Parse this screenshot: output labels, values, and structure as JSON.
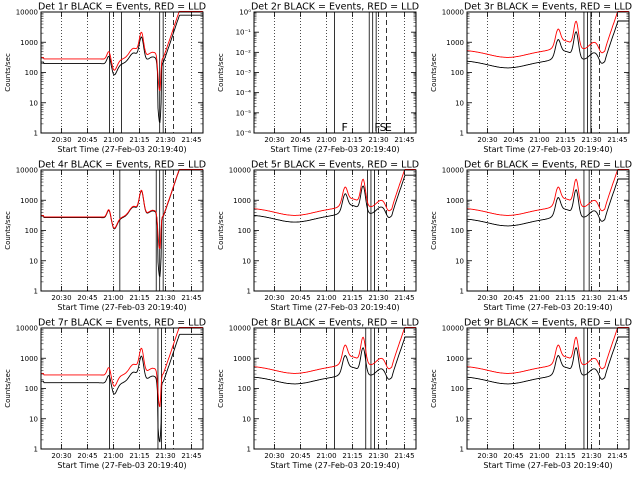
{
  "chart_data": [
    {
      "type": "line",
      "title": "Det 1r BLACK = Events, RED = LLD",
      "xlabel": "Start Time (27-Feb-03 20:19:40)",
      "ylabel": "Counts/sec",
      "yscale": "log",
      "ylim": [
        1,
        10000
      ],
      "xlim": [
        -1.5,
        92
      ],
      "x_tick_labels": [
        "20:30",
        "20:45",
        "21:00",
        "21:15",
        "21:30",
        "21:45"
      ],
      "y_tick_labels": [
        "1",
        "10",
        "100",
        "1000",
        "10000"
      ],
      "series": [
        {
          "name": "BLACK = Events",
          "color": "#000000",
          "shape": "A",
          "level": 0.7
        },
        {
          "name": "RED = LLD",
          "color": "#ff0000",
          "shape": "A",
          "level": 1.0
        }
      ],
      "vlines": [
        {
          "x": 38,
          "style": "solid"
        },
        {
          "x": 45,
          "style": "solid"
        },
        {
          "x": 67,
          "style": "solid"
        },
        {
          "x": 69,
          "style": "solid"
        },
        {
          "x": 75,
          "style": "dashed"
        }
      ]
    },
    {
      "type": "line",
      "title": "Det 2r BLACK = Events, RED = LLD",
      "xlabel": "Start Time (27-Feb-03 20:19:40)",
      "ylabel": "Counts/sec",
      "yscale": "log",
      "ylim": [
        1e-06,
        1
      ],
      "xlim": [
        -1.5,
        92
      ],
      "x_tick_labels": [
        "20:30",
        "20:45",
        "21:00",
        "21:15",
        "21:30",
        "21:45"
      ],
      "y_tick_labels": [
        "10⁻⁶",
        "10⁻⁵",
        "10⁻⁴",
        "10⁻³",
        "10⁻²",
        "10⁻¹",
        "10⁰"
      ],
      "series": [],
      "vlines": [
        {
          "x": 45,
          "style": "solid"
        },
        {
          "x": 65,
          "style": "solid"
        },
        {
          "x": 67,
          "style": "solid"
        },
        {
          "x": 69,
          "style": "solid"
        },
        {
          "x": 75,
          "style": "dashed"
        }
      ],
      "annotations": [
        {
          "x": 49,
          "text": "F"
        },
        {
          "x": 68,
          "text": "F"
        },
        {
          "x": 71,
          "text": "S"
        },
        {
          "x": 74,
          "text": "E"
        }
      ]
    },
    {
      "type": "line",
      "title": "Det 3r BLACK = Events, RED = LLD",
      "xlabel": "Start Time (27-Feb-03 20:19:40)",
      "ylabel": "Counts/sec",
      "yscale": "log",
      "ylim": [
        1,
        10000
      ],
      "xlim": [
        -1.5,
        92
      ],
      "x_tick_labels": [
        "20:30",
        "20:45",
        "21:00",
        "21:15",
        "21:30",
        "21:45"
      ],
      "y_tick_labels": [
        "1",
        "10",
        "100",
        "1000",
        "10000"
      ],
      "series": [
        {
          "name": "BLACK = Events",
          "color": "#000000",
          "shape": "B",
          "level": 0.45
        },
        {
          "name": "RED = LLD",
          "color": "#ff0000",
          "shape": "B",
          "level": 1.0
        }
      ],
      "vlines": [
        {
          "x": 66,
          "style": "solid"
        },
        {
          "x": 68,
          "style": "solid"
        },
        {
          "x": 70,
          "style": "solid"
        },
        {
          "x": 75,
          "style": "dashed"
        }
      ]
    },
    {
      "type": "line",
      "title": "Det 4r BLACK = Events, RED = LLD",
      "xlabel": "Start Time (27-Feb-03 20:19:40)",
      "ylabel": "Counts/sec",
      "yscale": "log",
      "ylim": [
        1,
        10000
      ],
      "xlim": [
        -1.5,
        92
      ],
      "x_tick_labels": [
        "20:30",
        "20:45",
        "21:00",
        "21:15",
        "21:30",
        "21:45"
      ],
      "y_tick_labels": [
        "1",
        "10",
        "100",
        "1000",
        "10000"
      ],
      "series": [
        {
          "name": "BLACK = Events",
          "color": "#000000",
          "shape": "A",
          "level": 0.95
        },
        {
          "name": "RED = LLD",
          "color": "#ff0000",
          "shape": "A",
          "level": 1.0
        }
      ],
      "vlines": [
        {
          "x": 44,
          "style": "solid"
        },
        {
          "x": 65,
          "style": "solid"
        },
        {
          "x": 67,
          "style": "solid"
        },
        {
          "x": 69,
          "style": "solid"
        },
        {
          "x": 75,
          "style": "dashed"
        }
      ]
    },
    {
      "type": "line",
      "title": "Det 5r BLACK = Events, RED = LLD",
      "xlabel": "Start Time (27-Feb-03 20:19:40)",
      "ylabel": "Counts/sec",
      "yscale": "log",
      "ylim": [
        1,
        10000
      ],
      "xlim": [
        -1.5,
        92
      ],
      "x_tick_labels": [
        "20:30",
        "20:45",
        "21:00",
        "21:15",
        "21:30",
        "21:45"
      ],
      "y_tick_labels": [
        "1",
        "10",
        "100",
        "1000",
        "10000"
      ],
      "series": [
        {
          "name": "BLACK = Events",
          "color": "#000000",
          "shape": "B",
          "level": 0.6
        },
        {
          "name": "RED = LLD",
          "color": "#ff0000",
          "shape": "B",
          "level": 1.0
        }
      ],
      "vlines": [
        {
          "x": 45,
          "style": "solid"
        },
        {
          "x": 64,
          "style": "solid"
        },
        {
          "x": 66,
          "style": "solid"
        },
        {
          "x": 68,
          "style": "solid"
        },
        {
          "x": 75,
          "style": "dashed"
        }
      ]
    },
    {
      "type": "line",
      "title": "Det 6r BLACK = Events, RED = LLD",
      "xlabel": "Start Time (27-Feb-03 20:19:40)",
      "ylabel": "Counts/sec",
      "yscale": "log",
      "ylim": [
        1,
        10000
      ],
      "xlim": [
        -1.5,
        92
      ],
      "x_tick_labels": [
        "20:30",
        "20:45",
        "21:00",
        "21:15",
        "21:30",
        "21:45"
      ],
      "y_tick_labels": [
        "1",
        "10",
        "100",
        "1000",
        "10000"
      ],
      "series": [
        {
          "name": "BLACK = Events",
          "color": "#000000",
          "shape": "B",
          "level": 0.45
        },
        {
          "name": "RED = LLD",
          "color": "#ff0000",
          "shape": "B",
          "level": 1.0
        }
      ],
      "vlines": [
        {
          "x": 66,
          "style": "solid"
        },
        {
          "x": 69,
          "style": "solid"
        },
        {
          "x": 75,
          "style": "dashed"
        }
      ]
    },
    {
      "type": "line",
      "title": "Det 7r BLACK = Events, RED = LLD",
      "xlabel": "Start Time (27-Feb-03 20:19:40)",
      "ylabel": "Counts/sec",
      "yscale": "log",
      "ylim": [
        1,
        10000
      ],
      "xlim": [
        -1.5,
        92
      ],
      "x_tick_labels": [
        "20:30",
        "20:45",
        "21:00",
        "21:15",
        "21:30",
        "21:45"
      ],
      "y_tick_labels": [
        "1",
        "10",
        "100",
        "1000",
        "10000"
      ],
      "series": [
        {
          "name": "BLACK = Events",
          "color": "#000000",
          "shape": "A",
          "level": 0.55
        },
        {
          "name": "RED = LLD",
          "color": "#ff0000",
          "shape": "A",
          "level": 1.0
        }
      ],
      "vlines": [
        {
          "x": 38,
          "style": "solid"
        },
        {
          "x": 66,
          "style": "solid"
        },
        {
          "x": 68,
          "style": "solid"
        },
        {
          "x": 75,
          "style": "dashed"
        }
      ]
    },
    {
      "type": "line",
      "title": "Det 8r BLACK = Events, RED = LLD",
      "xlabel": "Start Time (27-Feb-03 20:19:40)",
      "ylabel": "Counts/sec",
      "yscale": "log",
      "ylim": [
        1,
        10000
      ],
      "xlim": [
        -1.5,
        92
      ],
      "x_tick_labels": [
        "20:30",
        "20:45",
        "21:00",
        "21:15",
        "21:30",
        "21:45"
      ],
      "y_tick_labels": [
        "1",
        "10",
        "100",
        "1000",
        "10000"
      ],
      "series": [
        {
          "name": "BLACK = Events",
          "color": "#000000",
          "shape": "B",
          "level": 0.45
        },
        {
          "name": "RED = LLD",
          "color": "#ff0000",
          "shape": "B",
          "level": 1.0
        }
      ],
      "vlines": [
        {
          "x": 45,
          "style": "solid"
        },
        {
          "x": 63,
          "style": "solid"
        },
        {
          "x": 66,
          "style": "solid"
        },
        {
          "x": 68,
          "style": "solid"
        },
        {
          "x": 75,
          "style": "dashed"
        }
      ]
    },
    {
      "type": "line",
      "title": "Det 9r BLACK = Events, RED = LLD",
      "xlabel": "Start Time (27-Feb-03 20:19:40)",
      "ylabel": "Counts/sec",
      "yscale": "log",
      "ylim": [
        1,
        10000
      ],
      "xlim": [
        -1.5,
        92
      ],
      "x_tick_labels": [
        "20:30",
        "20:45",
        "21:00",
        "21:15",
        "21:30",
        "21:45"
      ],
      "y_tick_labels": [
        "1",
        "10",
        "100",
        "1000",
        "10000"
      ],
      "series": [
        {
          "name": "BLACK = Events",
          "color": "#000000",
          "shape": "B",
          "level": 0.45
        },
        {
          "name": "RED = LLD",
          "color": "#ff0000",
          "shape": "B",
          "level": 1.0
        }
      ],
      "vlines": [
        {
          "x": 66,
          "style": "solid"
        },
        {
          "x": 68,
          "style": "solid"
        },
        {
          "x": 75,
          "style": "dashed"
        }
      ]
    }
  ]
}
